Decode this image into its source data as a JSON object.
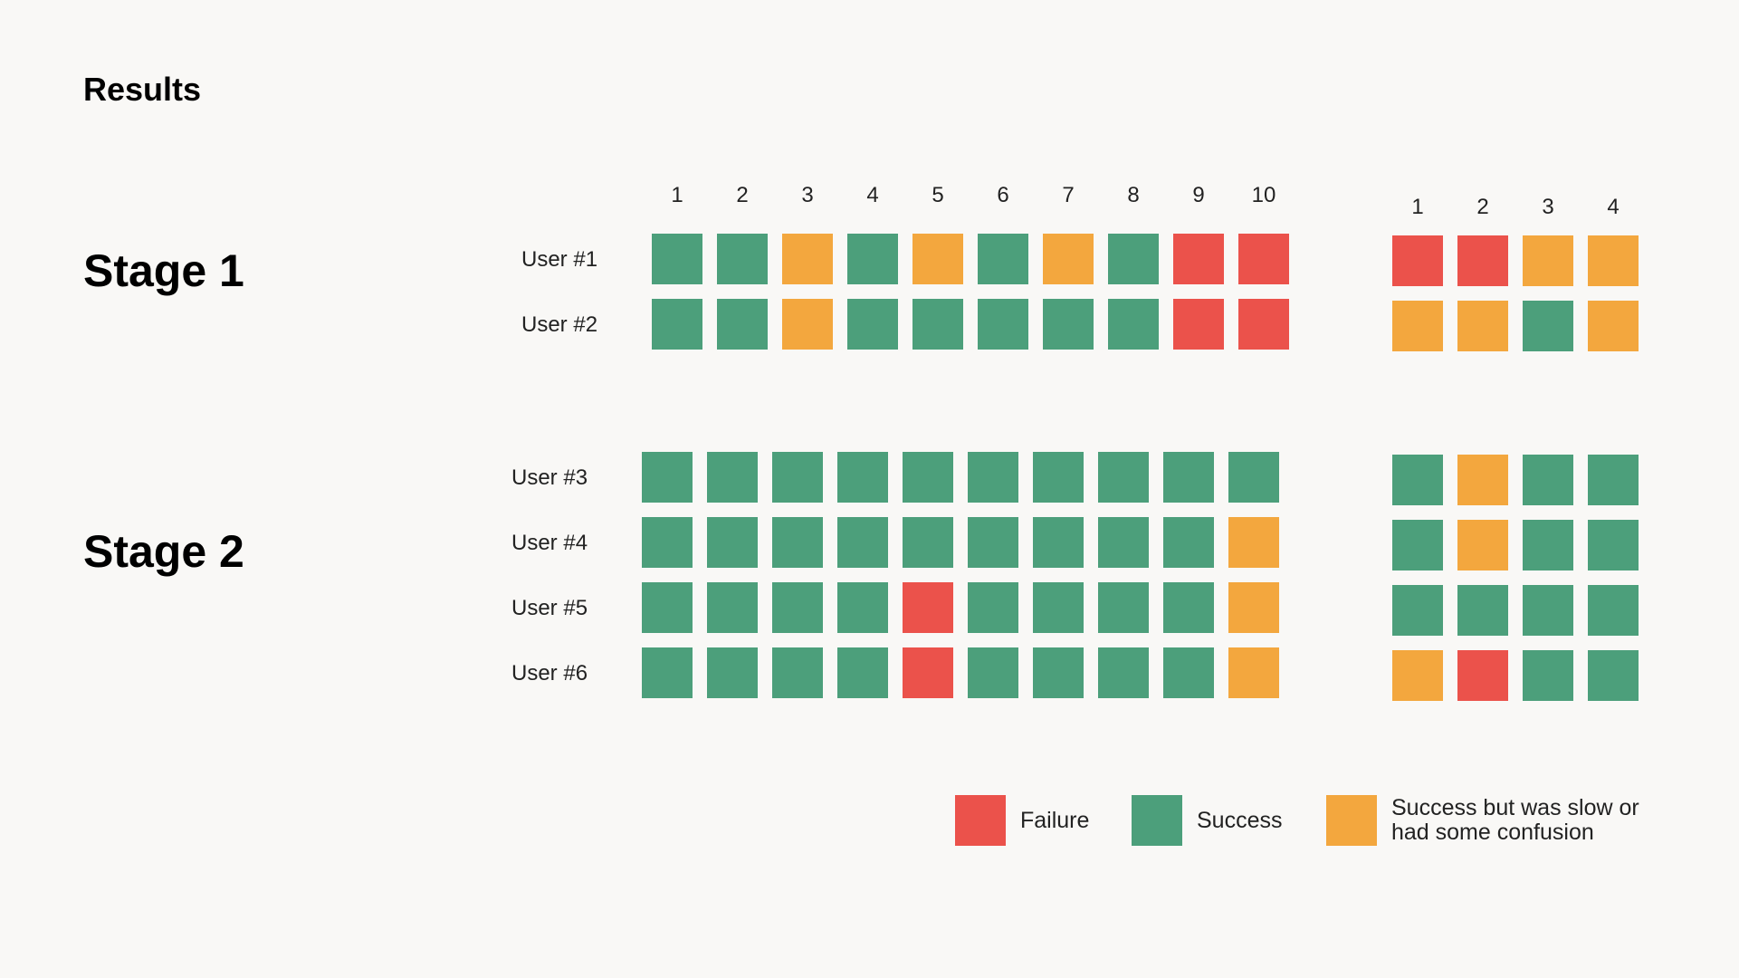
{
  "title": "Results",
  "colors": {
    "failure": "#eb524b",
    "success": "#4c9f7b",
    "slow": "#f3a73e"
  },
  "chart_data": {
    "type": "heatmap",
    "legend": [
      {
        "key": "failure",
        "label": "Failure"
      },
      {
        "key": "success",
        "label": "Success"
      },
      {
        "key": "slow",
        "label": "Success but was slow or had some confusion"
      }
    ],
    "stages": [
      {
        "name": "Stage 1",
        "task_sets": [
          {
            "columns": [
              "1",
              "2",
              "3",
              "4",
              "5",
              "6",
              "7",
              "8",
              "9",
              "10"
            ],
            "rows": [
              {
                "user": "User #1",
                "results": [
                  "success",
                  "success",
                  "slow",
                  "success",
                  "slow",
                  "success",
                  "slow",
                  "success",
                  "failure",
                  "failure"
                ]
              },
              {
                "user": "User #2",
                "results": [
                  "success",
                  "success",
                  "slow",
                  "success",
                  "success",
                  "success",
                  "success",
                  "success",
                  "failure",
                  "failure"
                ]
              }
            ]
          },
          {
            "columns": [
              "1",
              "2",
              "3",
              "4"
            ],
            "rows": [
              {
                "user": "User #1",
                "results": [
                  "failure",
                  "failure",
                  "slow",
                  "slow"
                ]
              },
              {
                "user": "User #2",
                "results": [
                  "slow",
                  "slow",
                  "success",
                  "slow"
                ]
              }
            ]
          }
        ]
      },
      {
        "name": "Stage 2",
        "task_sets": [
          {
            "columns": [],
            "rows": [
              {
                "user": "User #3",
                "results": [
                  "success",
                  "success",
                  "success",
                  "success",
                  "success",
                  "success",
                  "success",
                  "success",
                  "success",
                  "success"
                ]
              },
              {
                "user": "User #4",
                "results": [
                  "success",
                  "success",
                  "success",
                  "success",
                  "success",
                  "success",
                  "success",
                  "success",
                  "success",
                  "slow"
                ]
              },
              {
                "user": "User #5",
                "results": [
                  "success",
                  "success",
                  "success",
                  "success",
                  "failure",
                  "success",
                  "success",
                  "success",
                  "success",
                  "slow"
                ]
              },
              {
                "user": "User #6",
                "results": [
                  "success",
                  "success",
                  "success",
                  "success",
                  "failure",
                  "success",
                  "success",
                  "success",
                  "success",
                  "slow"
                ]
              }
            ]
          },
          {
            "columns": [],
            "rows": [
              {
                "user": "User #3",
                "results": [
                  "success",
                  "slow",
                  "success",
                  "success"
                ]
              },
              {
                "user": "User #4",
                "results": [
                  "success",
                  "slow",
                  "success",
                  "success"
                ]
              },
              {
                "user": "User #5",
                "results": [
                  "success",
                  "success",
                  "success",
                  "success"
                ]
              },
              {
                "user": "User #6",
                "results": [
                  "slow",
                  "failure",
                  "success",
                  "success"
                ]
              }
            ]
          }
        ]
      }
    ]
  }
}
